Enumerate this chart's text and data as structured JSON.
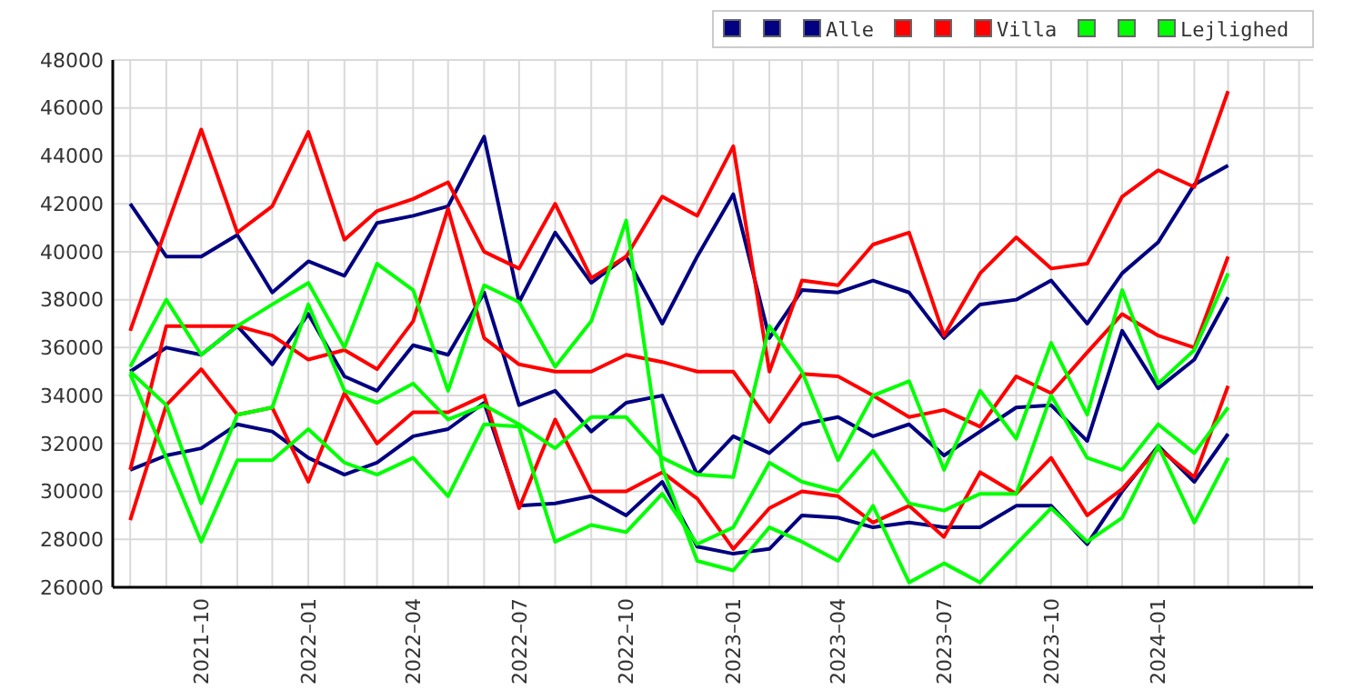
{
  "chart_data": {
    "type": "line",
    "x": [
      "2021-08",
      "2021-09",
      "2021-10",
      "2021-11",
      "2021-12",
      "2022-01",
      "2022-02",
      "2022-03",
      "2022-04",
      "2022-05",
      "2022-06",
      "2022-07",
      "2022-08",
      "2022-09",
      "2022-10",
      "2022-11",
      "2022-12",
      "2023-01",
      "2023-02",
      "2023-03",
      "2023-04",
      "2023-05",
      "2023-06",
      "2023-07",
      "2023-08",
      "2023-09",
      "2023-10",
      "2023-11",
      "2023-12",
      "2024-01",
      "2024-02",
      "2024-03"
    ],
    "series": [
      {
        "color": "#000080",
        "values": [
          42000,
          39800,
          39800,
          40700,
          38300,
          39600,
          39000,
          41200,
          41500,
          41900,
          44800,
          37900,
          40800,
          38700,
          39800,
          37000,
          39800,
          42400,
          36400,
          38400,
          38300,
          38800,
          38300,
          36400,
          37800,
          38000,
          38800,
          37000,
          39100,
          40400,
          42800,
          43600
        ]
      },
      {
        "color": "#000080",
        "values": [
          35000,
          36000,
          35700,
          36900,
          35300,
          37400,
          34800,
          34200,
          36100,
          35700,
          38300,
          33600,
          34200,
          32500,
          33700,
          34000,
          30700,
          32300,
          31600,
          32800,
          33100,
          32300,
          32800,
          31500,
          32500,
          33500,
          33600,
          32100,
          36700,
          34300,
          35500,
          38100
        ]
      },
      {
        "name": "Alle",
        "color": "#000080",
        "values": [
          30900,
          31500,
          31800,
          32800,
          32500,
          31400,
          30700,
          31200,
          32300,
          32600,
          33700,
          29400,
          29500,
          29800,
          29000,
          30400,
          27700,
          27400,
          27600,
          29000,
          28900,
          28500,
          28700,
          28500,
          28500,
          29400,
          29400,
          27800,
          30000,
          31900,
          30400,
          32400
        ]
      },
      {
        "color": "#ff0000",
        "values": [
          36700,
          41000,
          45100,
          40800,
          41900,
          45000,
          40500,
          41700,
          42200,
          42900,
          40000,
          39300,
          42000,
          38900,
          39800,
          42300,
          41500,
          44400,
          35000,
          38800,
          38600,
          40300,
          40800,
          36500,
          39100,
          40600,
          39300,
          39500,
          42300,
          43400,
          42700,
          46700
        ]
      },
      {
        "color": "#ff0000",
        "values": [
          30900,
          36900,
          36900,
          36900,
          36500,
          35500,
          35900,
          35100,
          37100,
          41800,
          36400,
          35300,
          35000,
          35000,
          35700,
          35400,
          35000,
          35000,
          32900,
          34900,
          34800,
          34000,
          33100,
          33400,
          32700,
          34800,
          34100,
          35800,
          37400,
          36500,
          36000,
          39800
        ]
      },
      {
        "name": "Villa",
        "color": "#ff0000",
        "values": [
          28800,
          33600,
          35100,
          33200,
          33500,
          30400,
          34100,
          32000,
          33300,
          33300,
          34000,
          29300,
          33000,
          30000,
          30000,
          30800,
          29700,
          27600,
          29300,
          30000,
          29800,
          28700,
          29400,
          28100,
          30800,
          29900,
          31400,
          29000,
          30100,
          31800,
          30600,
          34400
        ]
      },
      {
        "color": "#00ff00",
        "values": [
          35200,
          38000,
          35700,
          36900,
          37800,
          38700,
          36000,
          39500,
          38400,
          34200,
          38600,
          37900,
          35200,
          37100,
          41300,
          31000,
          27100,
          26700,
          28500,
          27900,
          27100,
          29400,
          26200,
          27000,
          26200,
          27800,
          29300,
          27900,
          28900,
          31900,
          28700,
          31400
        ]
      },
      {
        "color": "#00ff00",
        "values": [
          35000,
          33600,
          29500,
          33200,
          33500,
          37800,
          34200,
          33700,
          34500,
          33000,
          33600,
          32800,
          31800,
          33100,
          33100,
          31400,
          30700,
          30600,
          36900,
          35000,
          31300,
          34000,
          34600,
          30900,
          34200,
          32200,
          36200,
          33200,
          38400,
          34500,
          35900,
          39100
        ]
      },
      {
        "name": "Lejlighed",
        "color": "#00ff00",
        "values": [
          34900,
          31400,
          27900,
          31300,
          31300,
          32600,
          31200,
          30700,
          31400,
          29800,
          32800,
          32700,
          27900,
          28600,
          28300,
          29900,
          27800,
          28500,
          31200,
          30400,
          30000,
          31700,
          29500,
          29200,
          29900,
          29900,
          34000,
          31400,
          30900,
          32800,
          31600,
          33500
        ]
      }
    ],
    "xlim": [
      "2021-07-17",
      "2024-05-13"
    ],
    "xticks": [
      {
        "value": "2021-08",
        "label": null
      },
      {
        "value": "2021-09",
        "label": null
      },
      {
        "value": "2021-10",
        "label": "2021–10"
      },
      {
        "value": "2021-11",
        "label": null
      },
      {
        "value": "2021-12",
        "label": null
      },
      {
        "value": "2022-01",
        "label": "2022–01"
      },
      {
        "value": "2022-02",
        "label": null
      },
      {
        "value": "2022-03",
        "label": null
      },
      {
        "value": "2022-04",
        "label": "2022–04"
      },
      {
        "value": "2022-05",
        "label": null
      },
      {
        "value": "2022-06",
        "label": null
      },
      {
        "value": "2022-07",
        "label": "2022–07"
      },
      {
        "value": "2022-08",
        "label": null
      },
      {
        "value": "2022-09",
        "label": null
      },
      {
        "value": "2022-10",
        "label": "2022–10"
      },
      {
        "value": "2022-11",
        "label": null
      },
      {
        "value": "2022-12",
        "label": null
      },
      {
        "value": "2023-01",
        "label": "2023–01"
      },
      {
        "value": "2023-02",
        "label": null
      },
      {
        "value": "2023-03",
        "label": null
      },
      {
        "value": "2023-04",
        "label": "2023–04"
      },
      {
        "value": "2023-05",
        "label": null
      },
      {
        "value": "2023-06",
        "label": null
      },
      {
        "value": "2023-07",
        "label": "2023–07"
      },
      {
        "value": "2023-08",
        "label": null
      },
      {
        "value": "2023-09",
        "label": null
      },
      {
        "value": "2023-10",
        "label": "2023–10"
      },
      {
        "value": "2023-11",
        "label": null
      },
      {
        "value": "2023-12",
        "label": null
      },
      {
        "value": "2024-01",
        "label": "2024–01"
      },
      {
        "value": "2024-02",
        "label": null
      },
      {
        "value": "2024-03",
        "label": null
      },
      {
        "value": "2024-04",
        "label": null
      },
      {
        "value": "2024-05",
        "label": null
      }
    ],
    "ylim": [
      26000,
      48000
    ],
    "yticks": [
      26000,
      28000,
      30000,
      32000,
      34000,
      36000,
      38000,
      40000,
      42000,
      44000,
      46000,
      48000
    ],
    "grid": true,
    "legend": "top right",
    "marker": "none",
    "line_style": "solid"
  }
}
